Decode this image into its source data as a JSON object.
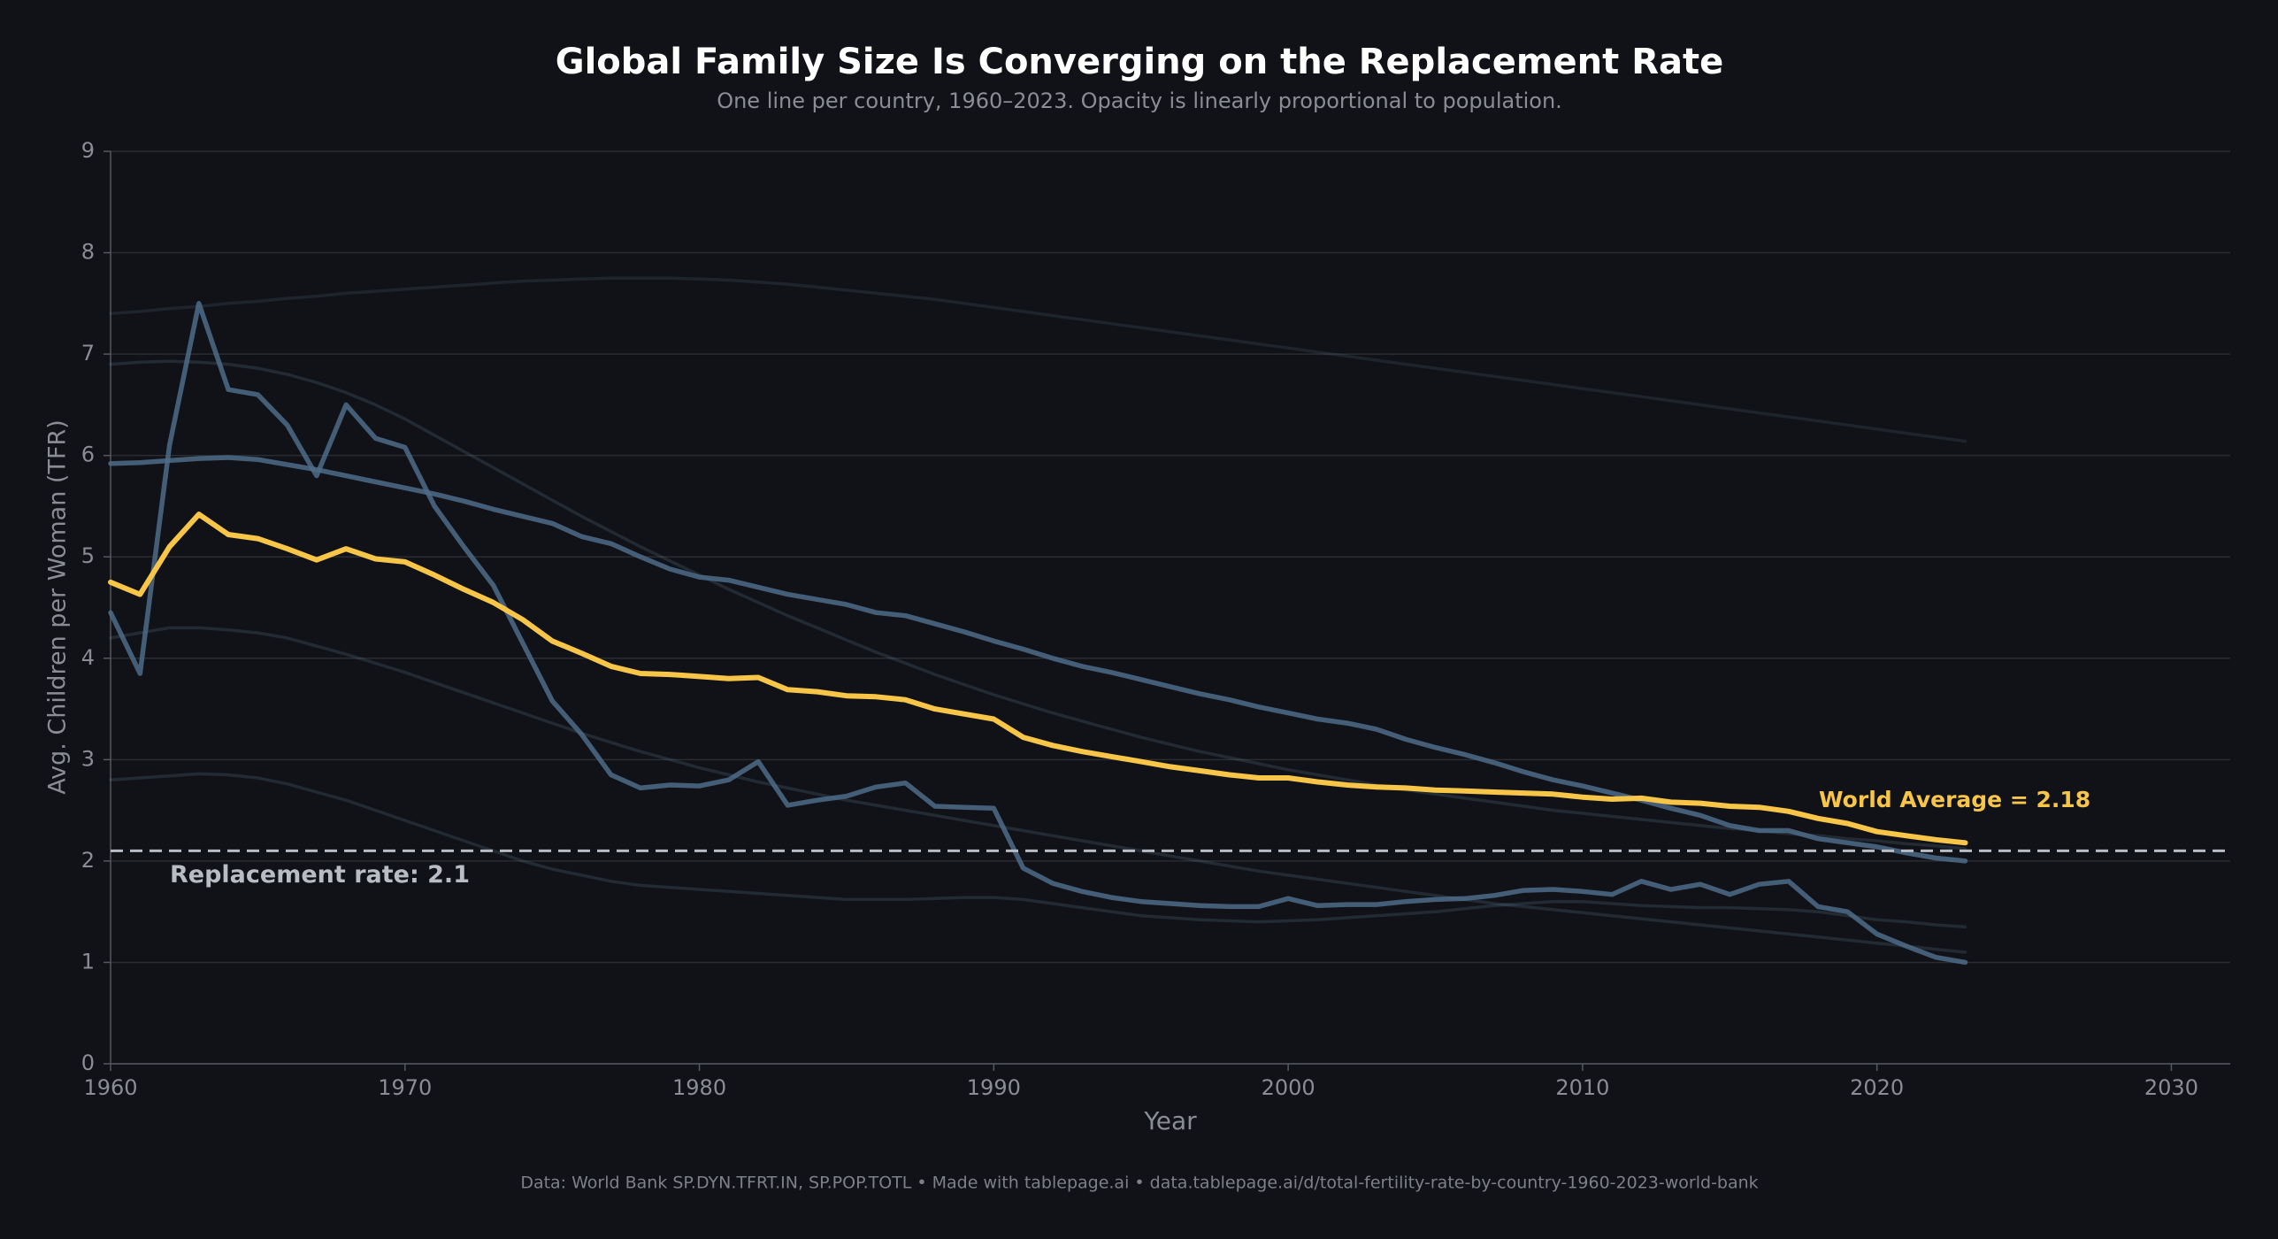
{
  "chart_data": {
    "type": "line",
    "title": "Global Family Size Is Converging on the Replacement Rate",
    "subtitle": "One line per country, 1960–2023. Opacity is linearly proportional to population.",
    "x_label": "Year",
    "y_label": "Avg. Children per Woman (TFR)",
    "footer": "Data: World Bank SP.DYN.TFRT.IN, SP.POP.TOTL  •  Made with tablepage.ai  •  data.tablepage.ai/d/total-fertility-rate-by-country-1960-2023-world-bank",
    "xlim": [
      1960,
      2032
    ],
    "xticks": [
      1960,
      1970,
      1980,
      1990,
      2000,
      2010,
      2020,
      2030
    ],
    "ylim": [
      0,
      9
    ],
    "yticks": [
      0,
      1,
      2,
      3,
      4,
      5,
      6,
      7,
      8,
      9
    ],
    "grid": true,
    "reference_line": {
      "value": 2.1,
      "label": "Replacement rate: 2.1",
      "color": "#b8bcc4"
    },
    "annotations": [
      {
        "text": "World Average = 2.18",
        "color": "#f7c548"
      }
    ],
    "x": [
      1960,
      1961,
      1962,
      1963,
      1964,
      1965,
      1966,
      1967,
      1968,
      1969,
      1970,
      1971,
      1972,
      1973,
      1974,
      1975,
      1976,
      1977,
      1978,
      1979,
      1980,
      1981,
      1982,
      1983,
      1984,
      1985,
      1986,
      1987,
      1988,
      1989,
      1990,
      1991,
      1992,
      1993,
      1994,
      1995,
      1996,
      1997,
      1998,
      1999,
      2000,
      2001,
      2002,
      2003,
      2004,
      2005,
      2006,
      2007,
      2008,
      2009,
      2010,
      2011,
      2012,
      2013,
      2014,
      2015,
      2016,
      2017,
      2018,
      2019,
      2020,
      2021,
      2022,
      2023
    ],
    "series": [
      {
        "color": "#6a8cab",
        "opacity": 0.15,
        "values": [
          7.4,
          7.42,
          7.45,
          7.47,
          7.5,
          7.52,
          7.55,
          7.57,
          7.6,
          7.62,
          7.64,
          7.66,
          7.68,
          7.7,
          7.72,
          7.73,
          7.74,
          7.75,
          7.75,
          7.75,
          7.74,
          7.73,
          7.71,
          7.69,
          7.66,
          7.63,
          7.6,
          7.57,
          7.54,
          7.5,
          7.46,
          7.42,
          7.38,
          7.34,
          7.3,
          7.26,
          7.22,
          7.18,
          7.14,
          7.1,
          7.06,
          7.02,
          6.98,
          6.94,
          6.9,
          6.86,
          6.82,
          6.78,
          6.74,
          6.7,
          6.66,
          6.62,
          6.58,
          6.54,
          6.5,
          6.46,
          6.42,
          6.38,
          6.34,
          6.3,
          6.26,
          6.22,
          6.18,
          6.14
        ]
      },
      {
        "color": "#6a8cab",
        "opacity": 0.2,
        "values": [
          6.9,
          6.92,
          6.93,
          6.92,
          6.9,
          6.86,
          6.8,
          6.72,
          6.62,
          6.5,
          6.36,
          6.2,
          6.04,
          5.88,
          5.72,
          5.56,
          5.4,
          5.25,
          5.1,
          4.96,
          4.82,
          4.68,
          4.55,
          4.42,
          4.3,
          4.18,
          4.06,
          3.95,
          3.84,
          3.74,
          3.64,
          3.55,
          3.46,
          3.38,
          3.3,
          3.22,
          3.15,
          3.08,
          3.02,
          2.96,
          2.9,
          2.85,
          2.8,
          2.75,
          2.7,
          2.66,
          2.62,
          2.58,
          2.54,
          2.5,
          2.47,
          2.44,
          2.41,
          2.38,
          2.35,
          2.32,
          2.3,
          2.27,
          2.25,
          2.22,
          2.2,
          2.17,
          2.15,
          2.12
        ]
      },
      {
        "color": "#6a8cab",
        "opacity": 0.2,
        "values": [
          2.8,
          2.82,
          2.84,
          2.86,
          2.85,
          2.82,
          2.76,
          2.68,
          2.6,
          2.5,
          2.4,
          2.3,
          2.2,
          2.1,
          2.0,
          1.92,
          1.86,
          1.8,
          1.76,
          1.74,
          1.72,
          1.7,
          1.68,
          1.66,
          1.64,
          1.62,
          1.62,
          1.62,
          1.63,
          1.64,
          1.64,
          1.62,
          1.58,
          1.54,
          1.5,
          1.46,
          1.44,
          1.42,
          1.41,
          1.4,
          1.41,
          1.42,
          1.44,
          1.46,
          1.48,
          1.5,
          1.53,
          1.56,
          1.58,
          1.6,
          1.6,
          1.58,
          1.56,
          1.55,
          1.54,
          1.54,
          1.53,
          1.52,
          1.5,
          1.46,
          1.42,
          1.4,
          1.37,
          1.35
        ]
      },
      {
        "color": "#6a8cab",
        "opacity": 0.2,
        "values": [
          4.2,
          4.25,
          4.3,
          4.3,
          4.28,
          4.25,
          4.2,
          4.12,
          4.04,
          3.95,
          3.86,
          3.76,
          3.66,
          3.56,
          3.46,
          3.36,
          3.26,
          3.17,
          3.08,
          3.0,
          2.92,
          2.85,
          2.78,
          2.72,
          2.66,
          2.6,
          2.55,
          2.5,
          2.45,
          2.4,
          2.35,
          2.3,
          2.25,
          2.2,
          2.15,
          2.1,
          2.05,
          2.0,
          1.95,
          1.9,
          1.86,
          1.82,
          1.78,
          1.74,
          1.7,
          1.66,
          1.62,
          1.58,
          1.55,
          1.52,
          1.49,
          1.46,
          1.43,
          1.4,
          1.37,
          1.34,
          1.31,
          1.28,
          1.25,
          1.22,
          1.19,
          1.16,
          1.13,
          1.1
        ]
      },
      {
        "color": "#4d6c88",
        "opacity": 0.85,
        "values": [
          4.45,
          3.85,
          6.1,
          7.5,
          6.65,
          6.6,
          6.3,
          5.8,
          6.5,
          6.17,
          6.08,
          5.5,
          5.1,
          4.72,
          4.15,
          3.58,
          3.25,
          2.85,
          2.72,
          2.75,
          2.74,
          2.8,
          2.98,
          2.55,
          2.6,
          2.64,
          2.73,
          2.77,
          2.54,
          2.53,
          2.52,
          1.93,
          1.78,
          1.7,
          1.64,
          1.6,
          1.58,
          1.56,
          1.55,
          1.55,
          1.63,
          1.56,
          1.57,
          1.57,
          1.6,
          1.62,
          1.63,
          1.66,
          1.71,
          1.72,
          1.7,
          1.67,
          1.8,
          1.72,
          1.77,
          1.67,
          1.77,
          1.8,
          1.55,
          1.5,
          1.28,
          1.16,
          1.05,
          1.0
        ]
      },
      {
        "color": "#4d6c88",
        "opacity": 0.85,
        "values": [
          5.92,
          5.93,
          5.95,
          5.97,
          5.98,
          5.96,
          5.91,
          5.86,
          5.8,
          5.74,
          5.68,
          5.62,
          5.55,
          5.47,
          5.4,
          5.33,
          5.2,
          5.13,
          5.0,
          4.88,
          4.8,
          4.77,
          4.7,
          4.63,
          4.58,
          4.53,
          4.45,
          4.42,
          4.34,
          4.26,
          4.17,
          4.09,
          4.0,
          3.92,
          3.86,
          3.79,
          3.72,
          3.65,
          3.59,
          3.52,
          3.46,
          3.4,
          3.36,
          3.3,
          3.2,
          3.12,
          3.05,
          2.97,
          2.88,
          2.8,
          2.74,
          2.67,
          2.6,
          2.52,
          2.45,
          2.35,
          2.3,
          2.3,
          2.22,
          2.18,
          2.14,
          2.08,
          2.03,
          2.0
        ]
      },
      {
        "color": "#f7c548",
        "opacity": 1,
        "values": [
          4.75,
          4.63,
          5.1,
          5.42,
          5.22,
          5.18,
          5.08,
          4.97,
          5.08,
          4.98,
          4.95,
          4.82,
          4.68,
          4.55,
          4.38,
          4.17,
          4.05,
          3.92,
          3.85,
          3.84,
          3.82,
          3.8,
          3.81,
          3.69,
          3.67,
          3.63,
          3.62,
          3.59,
          3.5,
          3.45,
          3.4,
          3.22,
          3.14,
          3.08,
          3.03,
          2.98,
          2.93,
          2.89,
          2.85,
          2.82,
          2.82,
          2.78,
          2.75,
          2.73,
          2.72,
          2.7,
          2.69,
          2.68,
          2.67,
          2.66,
          2.63,
          2.61,
          2.62,
          2.58,
          2.57,
          2.54,
          2.53,
          2.49,
          2.42,
          2.37,
          2.29,
          2.25,
          2.21,
          2.18
        ]
      }
    ]
  }
}
